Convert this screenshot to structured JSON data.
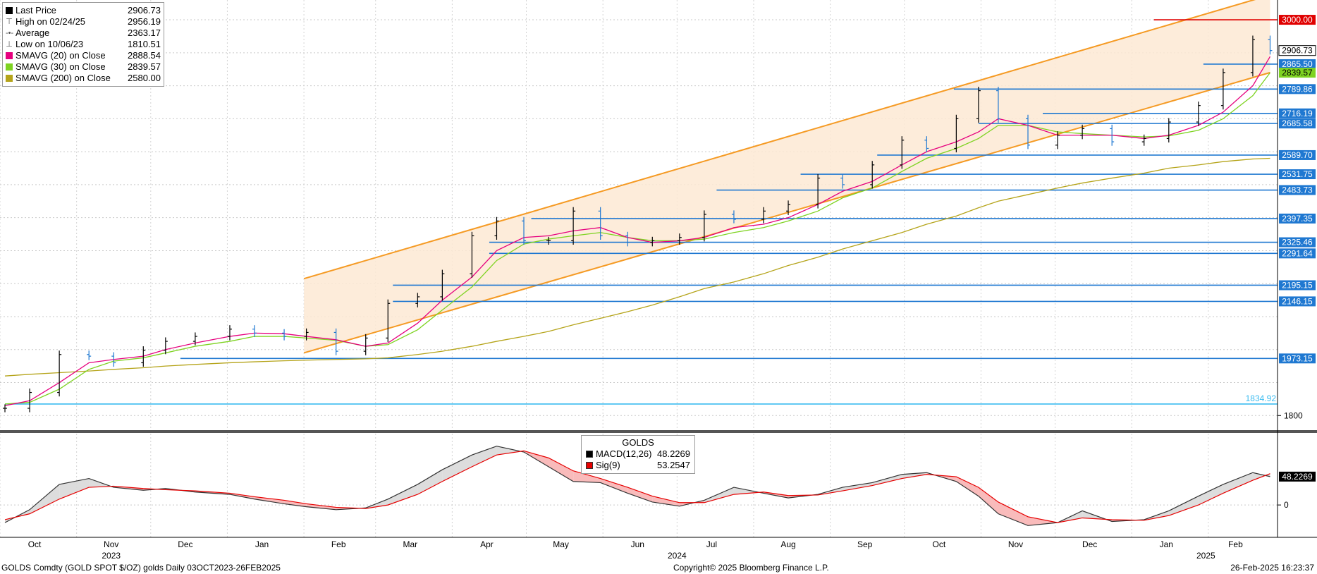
{
  "chart_data": {
    "type": "line",
    "main": {
      "series_name": "Last Price",
      "x": [
        "2023-10-03",
        "2023-10-13",
        "2023-10-25",
        "2023-11-06",
        "2023-11-16",
        "2023-11-28",
        "2023-12-07",
        "2023-12-19",
        "2024-01-02",
        "2024-01-12",
        "2024-01-24",
        "2024-02-02",
        "2024-02-14",
        "2024-02-26",
        "2024-03-06",
        "2024-03-18",
        "2024-03-28",
        "2024-04-09",
        "2024-04-19",
        "2024-04-30",
        "2024-05-10",
        "2024-05-20",
        "2024-05-31",
        "2024-06-11",
        "2024-06-21",
        "2024-07-02",
        "2024-07-12",
        "2024-07-24",
        "2024-08-05",
        "2024-08-15",
        "2024-08-27",
        "2024-09-06",
        "2024-09-18",
        "2024-09-30",
        "2024-10-10",
        "2024-10-22",
        "2024-10-31",
        "2024-11-08",
        "2024-11-20",
        "2024-12-02",
        "2024-12-12",
        "2024-12-24",
        "2025-01-06",
        "2025-01-16",
        "2025-01-28",
        "2025-02-07",
        "2025-02-19",
        "2025-02-26"
      ],
      "close": [
        1822,
        1870,
        1985,
        1980,
        1960,
        1998,
        2025,
        2040,
        2062,
        2050,
        2040,
        2052,
        1995,
        2035,
        2140,
        2160,
        2230,
        2345,
        2390,
        2330,
        2330,
        2420,
        2345,
        2325,
        2330,
        2340,
        2410,
        2395,
        2420,
        2440,
        2520,
        2500,
        2560,
        2635,
        2610,
        2700,
        2785,
        2700,
        2620,
        2650,
        2670,
        2630,
        2640,
        2690,
        2740,
        2840,
        2940,
        2906.73
      ],
      "ylim": [
        1760,
        3060
      ],
      "yticks": [
        1800
      ],
      "sma20": [
        1830,
        1845,
        1900,
        1960,
        1970,
        1980,
        2000,
        2020,
        2040,
        2050,
        2048,
        2040,
        2030,
        2010,
        2020,
        2080,
        2150,
        2220,
        2300,
        2340,
        2345,
        2360,
        2370,
        2340,
        2325,
        2330,
        2340,
        2370,
        2380,
        2400,
        2440,
        2480,
        2510,
        2560,
        2600,
        2630,
        2660,
        2700,
        2680,
        2650,
        2650,
        2650,
        2640,
        2650,
        2680,
        2720,
        2800,
        2888.54
      ],
      "sma30": [
        1835,
        1840,
        1880,
        1940,
        1965,
        1975,
        1990,
        2010,
        2025,
        2040,
        2040,
        2035,
        2028,
        2010,
        2015,
        2060,
        2120,
        2190,
        2270,
        2320,
        2335,
        2345,
        2355,
        2340,
        2330,
        2330,
        2335,
        2355,
        2370,
        2390,
        2420,
        2460,
        2490,
        2540,
        2580,
        2610,
        2640,
        2680,
        2680,
        2660,
        2655,
        2650,
        2645,
        2648,
        2665,
        2700,
        2770,
        2839.57
      ],
      "sma200": [
        1920,
        1925,
        1930,
        1935,
        1940,
        1945,
        1950,
        1955,
        1960,
        1963,
        1966,
        1968,
        1970,
        1972,
        1975,
        1985,
        1995,
        2010,
        2025,
        2040,
        2055,
        2075,
        2095,
        2115,
        2135,
        2160,
        2185,
        2205,
        2230,
        2255,
        2280,
        2305,
        2330,
        2355,
        2380,
        2405,
        2430,
        2450,
        2470,
        2490,
        2505,
        2520,
        2535,
        2550,
        2560,
        2570,
        2578,
        2580.0
      ]
    },
    "channel": {
      "upper": [
        [
          "2024-02-01",
          2215
        ],
        [
          "2025-02-26",
          3075
        ]
      ],
      "lower": [
        [
          "2024-02-01",
          1990
        ],
        [
          "2025-02-26",
          2840
        ]
      ]
    },
    "levels": [
      {
        "value": 3000.0,
        "label": "3000.00",
        "color": "#e00000",
        "from": "2025-01-10"
      },
      {
        "value": 2865.5,
        "label": "2865.50",
        "color": "#1f78d1",
        "from": "2025-01-30"
      },
      {
        "value": 2789.86,
        "label": "2789.86",
        "color": "#1f78d1",
        "from": "2024-10-21"
      },
      {
        "value": 2716.19,
        "label": "2716.19",
        "color": "#1f78d1",
        "from": "2024-11-26"
      },
      {
        "value": 2685.58,
        "label": "2685.58",
        "color": "#1f78d1",
        "from": "2024-10-31"
      },
      {
        "value": 2589.7,
        "label": "2589.70",
        "color": "#1f78d1",
        "from": "2024-09-20"
      },
      {
        "value": 2531.75,
        "label": "2531.75",
        "color": "#1f78d1",
        "from": "2024-08-20"
      },
      {
        "value": 2483.73,
        "label": "2483.73",
        "color": "#1f78d1",
        "from": "2024-07-17"
      },
      {
        "value": 2397.35,
        "label": "2397.35",
        "color": "#1f78d1",
        "from": "2024-05-03"
      },
      {
        "value": 2325.46,
        "label": "2325.46",
        "color": "#1f78d1",
        "from": "2024-04-16"
      },
      {
        "value": 2291.64,
        "label": "2291.64",
        "color": "#1f78d1",
        "from": "2024-04-16"
      },
      {
        "value": 2195.15,
        "label": "2195.15",
        "color": "#1f78d1",
        "from": "2024-03-08"
      },
      {
        "value": 2146.15,
        "label": "2146.15",
        "color": "#1f78d1",
        "from": "2024-03-08"
      },
      {
        "value": 1973.15,
        "label": "1973.15",
        "color": "#1f78d1",
        "from": "2023-12-13"
      },
      {
        "value": 1834.92,
        "label": "1834.92",
        "color": "#3bbcf0",
        "from": "2023-10-03"
      }
    ],
    "last_label": "2906.73",
    "sma30_label": "2839.57",
    "macd": {
      "x": [
        "2023-10-03",
        "2023-10-13",
        "2023-10-25",
        "2023-11-06",
        "2023-11-16",
        "2023-11-28",
        "2023-12-07",
        "2023-12-19",
        "2024-01-02",
        "2024-01-12",
        "2024-01-24",
        "2024-02-02",
        "2024-02-14",
        "2024-02-26",
        "2024-03-06",
        "2024-03-18",
        "2024-03-28",
        "2024-04-09",
        "2024-04-19",
        "2024-04-30",
        "2024-05-10",
        "2024-05-20",
        "2024-05-31",
        "2024-06-11",
        "2024-06-21",
        "2024-07-02",
        "2024-07-12",
        "2024-07-24",
        "2024-08-05",
        "2024-08-15",
        "2024-08-27",
        "2024-09-06",
        "2024-09-18",
        "2024-09-30",
        "2024-10-10",
        "2024-10-22",
        "2024-10-31",
        "2024-11-08",
        "2024-11-20",
        "2024-12-02",
        "2024-12-12",
        "2024-12-24",
        "2025-01-06",
        "2025-01-16",
        "2025-01-28",
        "2025-02-07",
        "2025-02-19",
        "2025-02-26"
      ],
      "macd": [
        -30,
        -8,
        35,
        45,
        30,
        25,
        28,
        22,
        18,
        10,
        2,
        -3,
        -8,
        -5,
        10,
        35,
        60,
        85,
        100,
        90,
        65,
        40,
        38,
        20,
        5,
        -2,
        8,
        30,
        20,
        12,
        18,
        30,
        38,
        52,
        55,
        40,
        15,
        -15,
        -35,
        -30,
        -10,
        -28,
        -25,
        -10,
        15,
        35,
        55,
        48.2269
      ],
      "signal": [
        -25,
        -15,
        10,
        30,
        32,
        28,
        26,
        24,
        20,
        14,
        8,
        2,
        -4,
        -6,
        0,
        18,
        40,
        65,
        85,
        92,
        80,
        58,
        45,
        30,
        15,
        4,
        4,
        18,
        22,
        16,
        17,
        24,
        33,
        45,
        52,
        48,
        30,
        5,
        -20,
        -30,
        -22,
        -25,
        -26,
        -18,
        0,
        20,
        42,
        53.2547
      ],
      "ylim": [
        -55,
        120
      ],
      "yticks": [
        0
      ],
      "macd_label": "MACD(12,26)",
      "macd_value": "48.2269",
      "signal_label": "Sig(9)",
      "signal_value": "53.2547",
      "title": "GOLDS",
      "right_label": "48.2269"
    },
    "xaxis": {
      "months": [
        {
          "label": "Oct",
          "date": "2023-10-15"
        },
        {
          "label": "Nov",
          "date": "2023-11-15"
        },
        {
          "label": "Dec",
          "date": "2023-12-15"
        },
        {
          "label": "Jan",
          "date": "2024-01-15"
        },
        {
          "label": "Feb",
          "date": "2024-02-15"
        },
        {
          "label": "Mar",
          "date": "2024-03-15"
        },
        {
          "label": "Apr",
          "date": "2024-04-15"
        },
        {
          "label": "May",
          "date": "2024-05-15"
        },
        {
          "label": "Jun",
          "date": "2024-06-15"
        },
        {
          "label": "Jul",
          "date": "2024-07-15"
        },
        {
          "label": "Aug",
          "date": "2024-08-15"
        },
        {
          "label": "Sep",
          "date": "2024-09-15"
        },
        {
          "label": "Oct",
          "date": "2024-10-15"
        },
        {
          "label": "Nov",
          "date": "2024-11-15"
        },
        {
          "label": "Dec",
          "date": "2024-12-15"
        },
        {
          "label": "Jan",
          "date": "2025-01-15"
        },
        {
          "label": "Feb",
          "date": "2025-02-12"
        }
      ],
      "years": [
        {
          "label": "2023",
          "date": "2023-11-15"
        },
        {
          "label": "2024",
          "date": "2024-07-01"
        },
        {
          "label": "2025",
          "date": "2025-01-31"
        }
      ],
      "start": "2023-10-01",
      "end": "2025-03-01"
    }
  },
  "legend": [
    {
      "label": "Last Price",
      "value": "2906.73",
      "color": "#000000",
      "icon": "square-icon"
    },
    {
      "label": "High on 02/24/25",
      "value": "2956.19",
      "color": "#555555",
      "icon": "high-marker-icon"
    },
    {
      "label": "Average",
      "value": "2363.17",
      "color": "#555555",
      "icon": "average-marker-icon"
    },
    {
      "label": "Low on 10/06/23",
      "value": "1810.51",
      "color": "#555555",
      "icon": "low-marker-icon"
    },
    {
      "label": "SMAVG (20)  on Close",
      "value": "2888.54",
      "color": "#e6007e",
      "icon": "square-icon"
    },
    {
      "label": "SMAVG (30)  on Close",
      "value": "2839.57",
      "color": "#7ed321",
      "icon": "square-icon"
    },
    {
      "label": "SMAVG (200)  on Close",
      "value": "2580.00",
      "color": "#b5a41a",
      "icon": "square-icon"
    }
  ],
  "footer": {
    "left": "GOLDS Comdty (GOLD SPOT $/OZ) golds  Daily 03OCT2023-26FEB2025",
    "center": "Copyright© 2025 Bloomberg Finance L.P.",
    "right": "26-Feb-2025 16:23:37"
  },
  "colors": {
    "candle_up": "#000000",
    "candle_down": "#1f78d1",
    "channel_line": "#f59a23",
    "channel_fill": "#fde9d3",
    "sma20": "#e6007e",
    "sma30": "#7ed321",
    "sma200": "#b5a41a",
    "macd_line": "#333333",
    "signal_line": "#e60000",
    "macd_fill_pos": "#d9d9d9",
    "macd_fill_neg": "#f8b4b4"
  }
}
